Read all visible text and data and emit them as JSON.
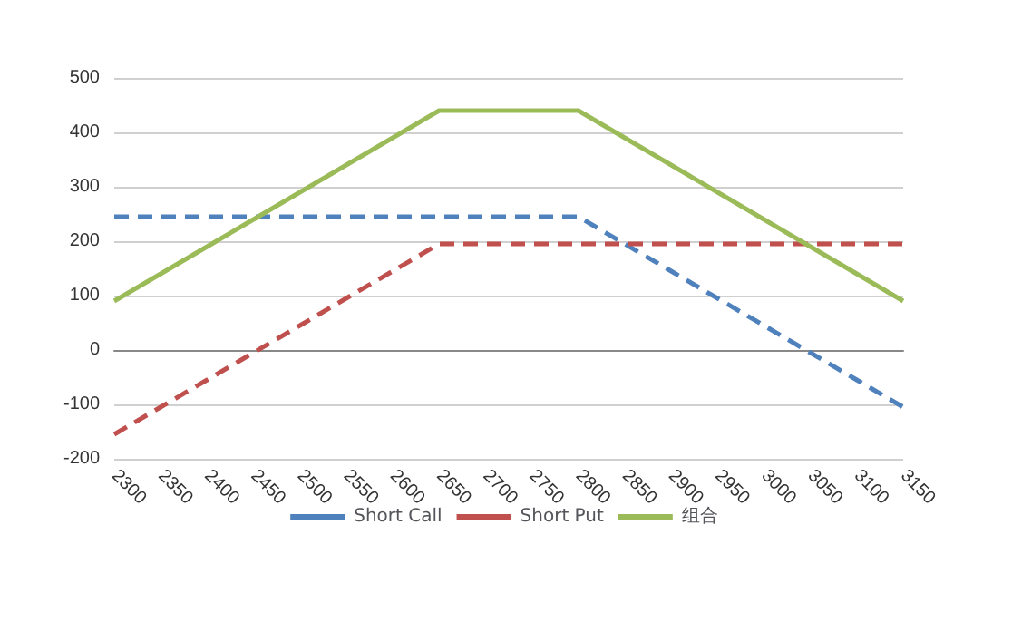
{
  "chart_data": {
    "type": "line",
    "categories": [
      "2300",
      "2350",
      "2400",
      "2450",
      "2500",
      "2550",
      "2600",
      "2650",
      "2700",
      "2750",
      "2800",
      "2850",
      "2900",
      "2950",
      "3000",
      "3050",
      "3100",
      "3150"
    ],
    "series": [
      {
        "name": "Short Call",
        "color": "#4f81bd",
        "line_style": "dashed",
        "values": [
          245,
          245,
          245,
          245,
          245,
          245,
          245,
          245,
          245,
          245,
          245,
          195,
          145,
          95,
          45,
          -5,
          -55,
          -105
        ]
      },
      {
        "name": "Short Put",
        "color": "#c0504d",
        "line_style": "dashed",
        "values": [
          -155,
          -105,
          -55,
          -5,
          45,
          95,
          145,
          195,
          195,
          195,
          195,
          195,
          195,
          195,
          195,
          195,
          195,
          195
        ]
      },
      {
        "name": "组合",
        "color": "#9bbb59",
        "line_style": "solid",
        "values": [
          90,
          140,
          190,
          240,
          290,
          340,
          390,
          440,
          440,
          440,
          440,
          390,
          340,
          290,
          240,
          190,
          140,
          90
        ]
      }
    ],
    "ylim": [
      -200,
      500
    ],
    "yticks": [
      -200,
      -100,
      0,
      100,
      200,
      300,
      400,
      500
    ],
    "grid": "y",
    "legend": "bottom",
    "marker": "none"
  }
}
